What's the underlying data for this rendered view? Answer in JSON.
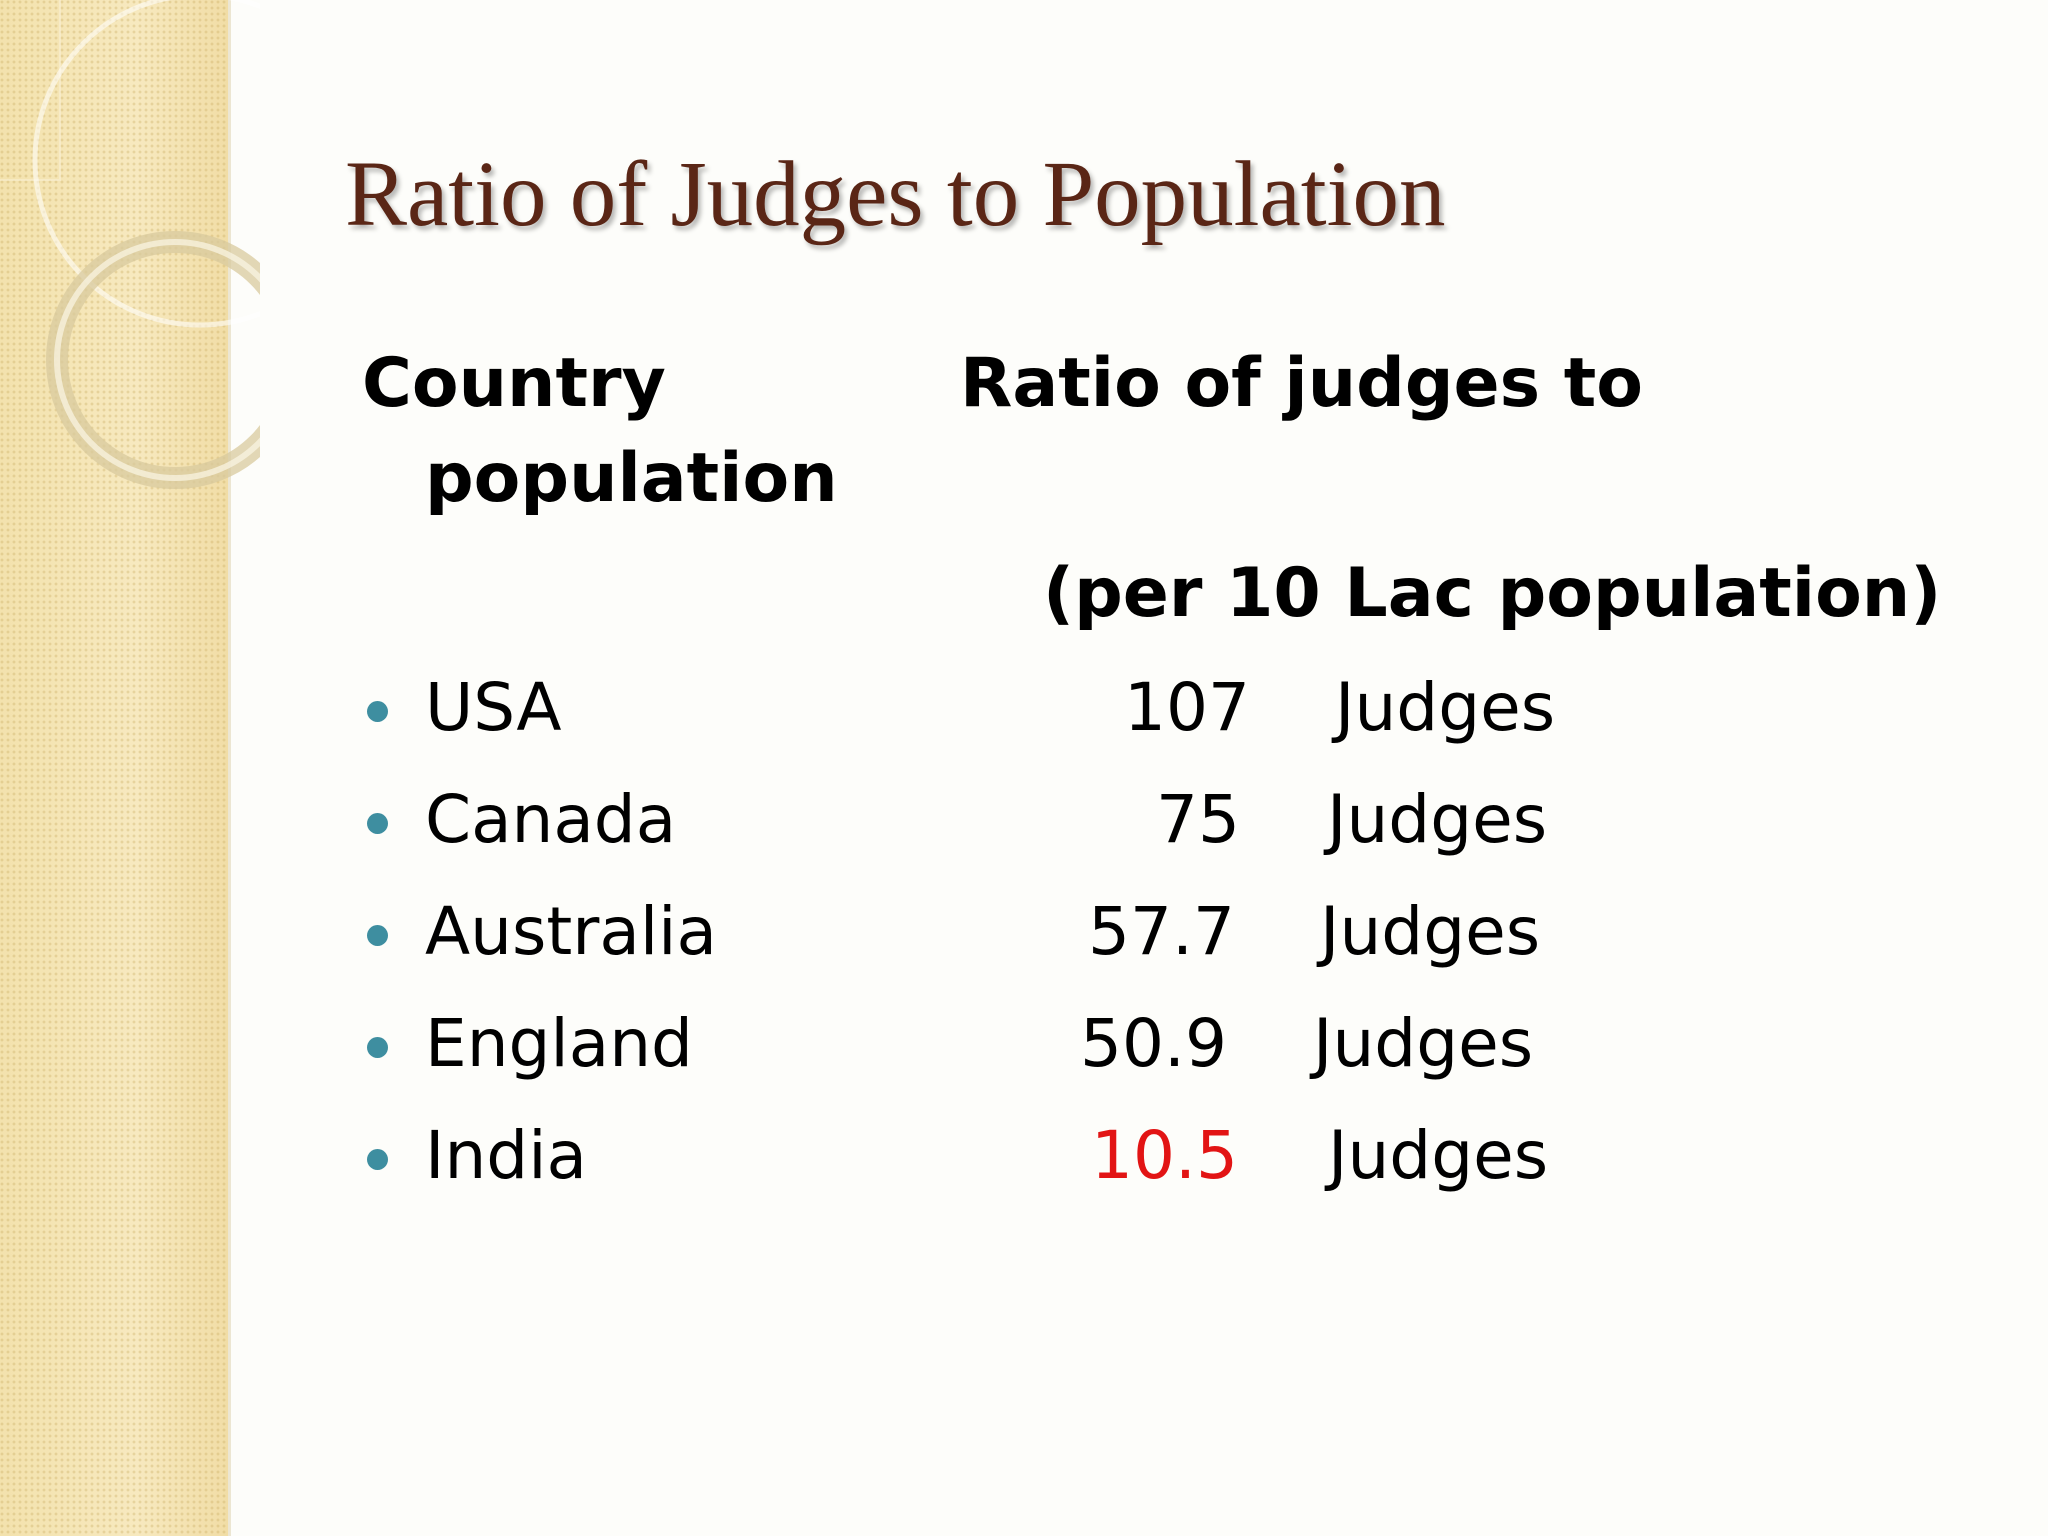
{
  "slide": {
    "title": "Ratio of Judges to Population",
    "header": {
      "country": "Country",
      "ratio": "Ratio of judges to",
      "population": "population",
      "per": "(per 10 Lac population)"
    },
    "rows": [
      {
        "country": "USA",
        "value": "107",
        "unit": "Judges"
      },
      {
        "country": "Canada",
        "value": "75",
        "unit": "Judges"
      },
      {
        "country": "Australia",
        "value": "57.7",
        "unit": "Judges"
      },
      {
        "country": "England",
        "value": "50.9",
        "unit": "Judges"
      },
      {
        "country": "India",
        "value": "10.5",
        "unit": "Judges"
      }
    ],
    "colors": {
      "title": "#5a2616",
      "bullet": "#3e8ea0",
      "highlight": "#e21414",
      "side_panel": "#f5e5b5"
    }
  }
}
